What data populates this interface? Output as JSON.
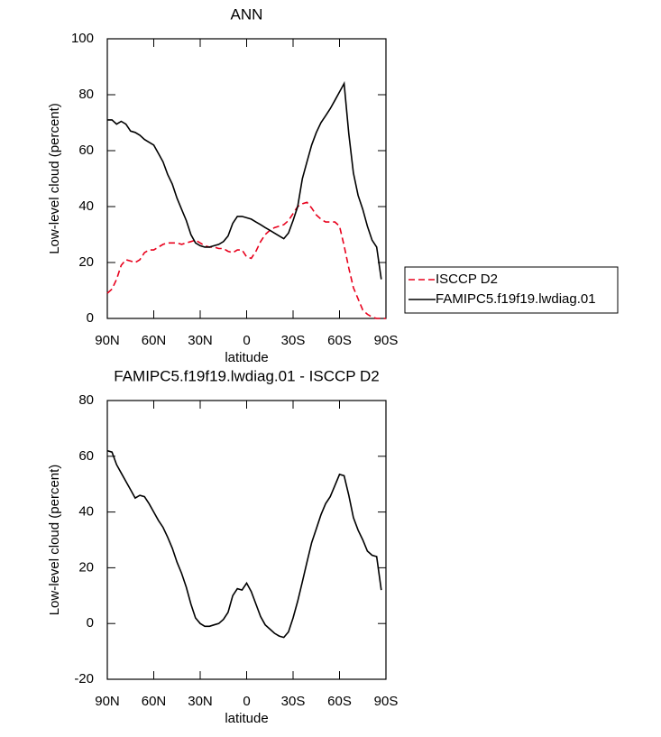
{
  "chart_data": [
    {
      "type": "line",
      "title": "ANN",
      "x_label": "latitude",
      "y_label": "Low-level cloud (percent)",
      "x": [
        90,
        87,
        84,
        81,
        78,
        75,
        72,
        69,
        66,
        63,
        60,
        57,
        54,
        51,
        48,
        45,
        42,
        39,
        36,
        33,
        30,
        27,
        24,
        21,
        18,
        15,
        12,
        9,
        6,
        3,
        0,
        -3,
        -6,
        -9,
        -12,
        -15,
        -18,
        -21,
        -24,
        -27,
        -30,
        -33,
        -36,
        -39,
        -42,
        -45,
        -48,
        -51,
        -54,
        -57,
        -60,
        -63,
        -66,
        -69,
        -72,
        -75,
        -78,
        -81,
        -84,
        -87,
        -90
      ],
      "xlim": [
        90,
        -90
      ],
      "xticks": [
        {
          "value": 90,
          "label": "90N"
        },
        {
          "value": 60,
          "label": "60N"
        },
        {
          "value": 30,
          "label": "30N"
        },
        0,
        {
          "value": -30,
          "label": "30S"
        },
        {
          "value": -60,
          "label": "60S"
        },
        {
          "value": -90,
          "label": "90S"
        }
      ],
      "ylim": [
        0,
        100
      ],
      "yticks": [
        0,
        20,
        40,
        60,
        80,
        100
      ],
      "legend": "right",
      "series": [
        {
          "name": "ISCCP D2",
          "color": "#e8001c",
          "dash": "dashed",
          "values": [
            9,
            10.5,
            14,
            19,
            21,
            20.5,
            20,
            21,
            23.5,
            24.5,
            24.5,
            25.5,
            26.5,
            27,
            27,
            27,
            26.5,
            27,
            27.5,
            28,
            27,
            26,
            25.5,
            25.5,
            25,
            25,
            24,
            23.5,
            24.5,
            24.5,
            22,
            21.5,
            24,
            27.5,
            30,
            31.5,
            32.5,
            33,
            33.5,
            35,
            37.5,
            40,
            41,
            41.5,
            39.5,
            37,
            35.5,
            34.5,
            34.5,
            34.5,
            33,
            26,
            18,
            11,
            7,
            3,
            1.5,
            0.5,
            0,
            0,
            0
          ]
        },
        {
          "name": "FAMIPC5.f19f19.lwdiag.01",
          "color": "#000000",
          "dash": "solid",
          "values": [
            71,
            71,
            69.5,
            70.5,
            69.5,
            67,
            66.5,
            65.5,
            64,
            63,
            62,
            59,
            56,
            51.5,
            48,
            43,
            39,
            35,
            30,
            27,
            26,
            25.5,
            25.5,
            26,
            26.5,
            27.5,
            29.5,
            34,
            36.5,
            36.5,
            36,
            35.5,
            34.5,
            33.5,
            32.5,
            31.5,
            30.5,
            29.5,
            28.5,
            30.5,
            35,
            40,
            50,
            56,
            62,
            66.5,
            70,
            72.5,
            75,
            78,
            81,
            84,
            66,
            52,
            44,
            39,
            33,
            28,
            25.5,
            14,
            null
          ]
        }
      ]
    },
    {
      "type": "line",
      "title": "FAMIPC5.f19f19.lwdiag.01 - ISCCP D2",
      "x_label": "latitude",
      "y_label": "Low-level cloud (percent)",
      "x": [
        90,
        87,
        84,
        81,
        78,
        75,
        72,
        69,
        66,
        63,
        60,
        57,
        54,
        51,
        48,
        45,
        42,
        39,
        36,
        33,
        30,
        27,
        24,
        21,
        18,
        15,
        12,
        9,
        6,
        3,
        0,
        -3,
        -6,
        -9,
        -12,
        -15,
        -18,
        -21,
        -24,
        -27,
        -30,
        -33,
        -36,
        -39,
        -42,
        -45,
        -48,
        -51,
        -54,
        -57,
        -60,
        -63,
        -66,
        -69,
        -72,
        -75,
        -78,
        -81,
        -84,
        -87,
        -90
      ],
      "xlim": [
        90,
        -90
      ],
      "xticks": [
        {
          "value": 90,
          "label": "90N"
        },
        {
          "value": 60,
          "label": "60N"
        },
        {
          "value": 30,
          "label": "30N"
        },
        0,
        {
          "value": -30,
          "label": "30S"
        },
        {
          "value": -60,
          "label": "60S"
        },
        {
          "value": -90,
          "label": "90S"
        }
      ],
      "ylim": [
        -20,
        80
      ],
      "yticks": [
        -20,
        0,
        20,
        40,
        60,
        80
      ],
      "series": [
        {
          "color": "#000000",
          "dash": "solid",
          "values": [
            62,
            61.5,
            57,
            54,
            51,
            48,
            45,
            46,
            45.5,
            43,
            40,
            37,
            34.5,
            31,
            27,
            22,
            18,
            13,
            7,
            2,
            0,
            -1,
            -1,
            -0.5,
            0,
            1.5,
            4,
            10,
            12.5,
            12,
            14.5,
            11.5,
            7,
            2.5,
            -0.5,
            -2,
            -3.5,
            -4.5,
            -5,
            -3,
            2,
            8,
            15,
            22,
            29,
            34,
            39,
            43,
            45.5,
            49.5,
            53.5,
            53,
            46,
            38,
            33.5,
            30,
            26,
            24.5,
            24,
            12,
            null
          ]
        }
      ]
    }
  ]
}
